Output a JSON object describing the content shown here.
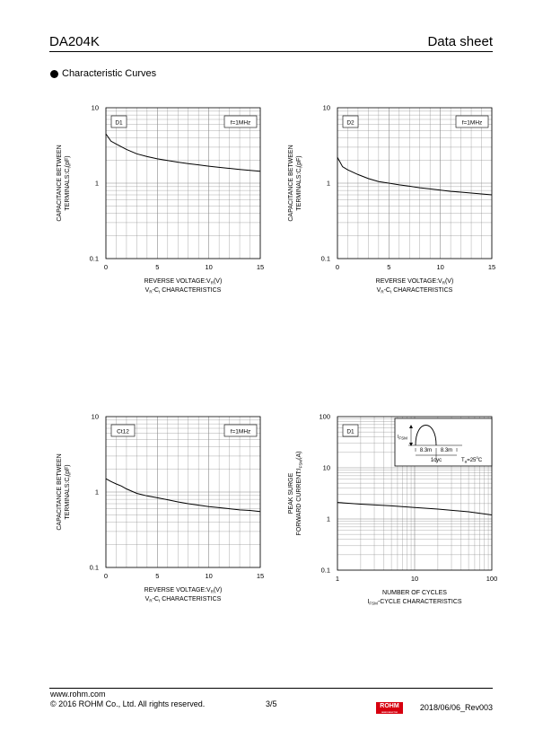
{
  "header": {
    "part_number": "DA204K",
    "doc_type": "Data sheet"
  },
  "section_title": "Characteristic Curves",
  "chart_data": [
    {
      "type": "line",
      "panel_label": "D1",
      "condition": "f=1MHz",
      "ylabel": [
        "CAPACITANCE BETWEEN",
        "TERMINALS:C",
        "t",
        "(pF)"
      ],
      "xlabel": [
        "REVERSE VOLTAGE:V",
        "R",
        "(V)"
      ],
      "caption": [
        "V",
        "R",
        "-C",
        "t",
        " CHARACTERISTICS"
      ],
      "x_scale": "linear",
      "y_scale": "log",
      "xlim": [
        0,
        15
      ],
      "ylim": [
        0.1,
        10
      ],
      "x_ticks": [
        0,
        5,
        10,
        15
      ],
      "x_tick_labels": [
        "0",
        "5",
        "10",
        "15"
      ],
      "y_ticks": [
        0.1,
        1,
        10
      ],
      "y_tick_labels": [
        "0.1",
        "1",
        "10"
      ],
      "grid": true,
      "series": [
        {
          "x": [
            0,
            0.5,
            1,
            2,
            3,
            4,
            5,
            6,
            7,
            8,
            9,
            10,
            11,
            12,
            13,
            14,
            15
          ],
          "y": [
            4.5,
            3.6,
            3.3,
            2.8,
            2.45,
            2.25,
            2.1,
            2.0,
            1.9,
            1.82,
            1.75,
            1.68,
            1.62,
            1.57,
            1.52,
            1.48,
            1.44
          ]
        }
      ]
    },
    {
      "type": "line",
      "panel_label": "D2",
      "condition": "f=1MHz",
      "ylabel": [
        "CAPACITANCE BETWEEN",
        "TERMINALS:C",
        "t",
        "(pF)"
      ],
      "xlabel": [
        "REVERSE VOLTAGE:V",
        "R",
        "(V)"
      ],
      "caption": [
        "V",
        "R",
        "-C",
        "t",
        " CHARACTERISTICS"
      ],
      "x_scale": "linear",
      "y_scale": "log",
      "xlim": [
        0,
        15
      ],
      "ylim": [
        0.1,
        10
      ],
      "x_ticks": [
        0,
        5,
        10,
        15
      ],
      "x_tick_labels": [
        "0",
        "5",
        "10",
        "15"
      ],
      "y_ticks": [
        0.1,
        1,
        10
      ],
      "y_tick_labels": [
        "0.1",
        "1",
        "10"
      ],
      "grid": true,
      "series": [
        {
          "x": [
            0,
            0.5,
            1,
            2,
            3,
            4,
            5,
            6,
            7,
            8,
            9,
            10,
            11,
            12,
            13,
            14,
            15
          ],
          "y": [
            2.2,
            1.65,
            1.5,
            1.3,
            1.15,
            1.05,
            1.0,
            0.95,
            0.91,
            0.87,
            0.84,
            0.81,
            0.78,
            0.76,
            0.74,
            0.72,
            0.7
          ]
        }
      ]
    },
    {
      "type": "line",
      "panel_label": "Ct12",
      "condition": "f=1MHz",
      "ylabel": [
        "CAPACITANCE BETWEEN",
        "TERMINALS:C",
        "t",
        "(pF)"
      ],
      "xlabel": [
        "REVERSE VOLTAGE:V",
        "R",
        "(V)"
      ],
      "caption": [
        "V",
        "R",
        "-C",
        "t",
        " CHARACTERISTICS"
      ],
      "x_scale": "linear",
      "y_scale": "log",
      "xlim": [
        0,
        15
      ],
      "ylim": [
        0.1,
        10
      ],
      "x_ticks": [
        0,
        5,
        10,
        15
      ],
      "x_tick_labels": [
        "0",
        "5",
        "10",
        "15"
      ],
      "y_ticks": [
        0.1,
        1,
        10
      ],
      "y_tick_labels": [
        "0.1",
        "1",
        "10"
      ],
      "grid": true,
      "series": [
        {
          "x": [
            0,
            0.5,
            1,
            1.5,
            2,
            3,
            4,
            5,
            6,
            7,
            8,
            9,
            10,
            11,
            12,
            13,
            14,
            15
          ],
          "y": [
            1.5,
            1.38,
            1.28,
            1.2,
            1.1,
            0.96,
            0.89,
            0.84,
            0.79,
            0.74,
            0.7,
            0.67,
            0.64,
            0.62,
            0.6,
            0.58,
            0.57,
            0.55
          ]
        }
      ]
    },
    {
      "type": "line",
      "panel_label": "D1",
      "ylabel": [
        "PEAK SURGE",
        "FORWARD CURRENT:I",
        "FSM",
        "(A)"
      ],
      "xlabel": [
        "NUMBER OF CYCLES"
      ],
      "caption": [
        "I",
        "FSM",
        "-CYCLE CHARACTERISTICS"
      ],
      "x_scale": "log",
      "y_scale": "log",
      "xlim": [
        1,
        100
      ],
      "ylim": [
        0.1,
        100
      ],
      "x_ticks": [
        1,
        10,
        100
      ],
      "x_tick_labels": [
        "1",
        "10",
        "100"
      ],
      "y_ticks": [
        0.1,
        1,
        10,
        100
      ],
      "y_tick_labels": [
        "0.1",
        "1",
        "10",
        "100"
      ],
      "grid": true,
      "inset": {
        "ifsm": [
          "I",
          "FSM"
        ],
        "t1": "8.3m",
        "t2": "8.3m",
        "cyc": "1cyc",
        "ta": [
          "T",
          "a",
          "=25",
          "o",
          "C"
        ]
      },
      "series": [
        {
          "x": [
            1,
            2,
            5,
            10,
            20,
            50,
            100
          ],
          "y": [
            2.1,
            1.95,
            1.8,
            1.68,
            1.56,
            1.38,
            1.2
          ]
        }
      ]
    }
  ],
  "footer": {
    "url": "www.rohm.com",
    "copyright": "© 2016 ROHM Co., Ltd. All rights reserved.",
    "page": "3/5",
    "logo": "ROHM",
    "logo_sub": "SEMICONDUCTOR",
    "revision": "2018/06/06_Rev003"
  },
  "colors": {
    "logo_red": "#d7000f",
    "grid": "#888888",
    "curve": "#000000"
  }
}
